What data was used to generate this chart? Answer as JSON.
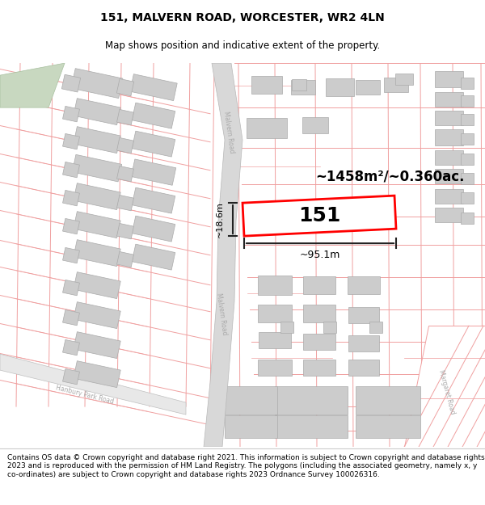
{
  "title": "151, MALVERN ROAD, WORCESTER, WR2 4LN",
  "subtitle": "Map shows position and indicative extent of the property.",
  "footer": "Contains OS data © Crown copyright and database right 2021. This information is subject to Crown copyright and database rights 2023 and is reproduced with the permission of HM Land Registry. The polygons (including the associated geometry, namely x, y co-ordinates) are subject to Crown copyright and database rights 2023 Ordnance Survey 100026316.",
  "area_text": "~1458m²/~0.360ac.",
  "width_text": "~95.1m",
  "height_text": "~18.6m",
  "plot_number": "151",
  "map_bg": "#ffffff",
  "plot_fill": "#ffffff",
  "plot_border": "#ff0000",
  "road_fill": "#d8d8d8",
  "road_edge": "#b8b8b8",
  "boundary_color": "#f0a0a0",
  "building_fill": "#cccccc",
  "building_edge": "#aaaaaa",
  "green_fill": "#c8dcc8",
  "title_fontsize": 10,
  "subtitle_fontsize": 8.5,
  "footer_fontsize": 6.5,
  "road_label_color": "#aaaaaa",
  "dim_color": "#222222"
}
